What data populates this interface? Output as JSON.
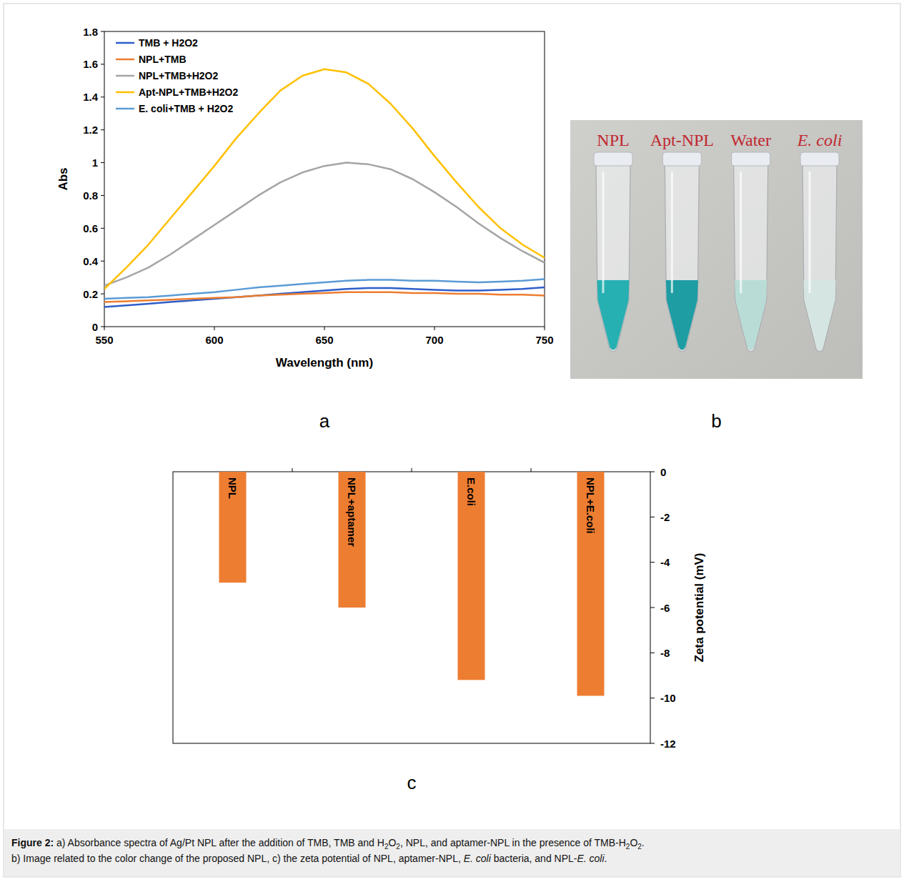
{
  "chart_data": [
    {
      "type": "line",
      "x_label": "Wavelength (nm)",
      "y_label": "Abs",
      "x": [
        550,
        560,
        570,
        580,
        590,
        600,
        610,
        620,
        630,
        640,
        650,
        660,
        670,
        680,
        690,
        700,
        710,
        720,
        730,
        740,
        750
      ],
      "series": [
        {
          "name": "TMB + H2O2",
          "color": "#2e5ec9",
          "values": [
            0.12,
            0.13,
            0.14,
            0.15,
            0.16,
            0.17,
            0.18,
            0.19,
            0.2,
            0.21,
            0.22,
            0.23,
            0.235,
            0.235,
            0.23,
            0.225,
            0.22,
            0.22,
            0.225,
            0.23,
            0.24
          ]
        },
        {
          "name": "NPL+TMB",
          "color": "#ed7d31",
          "values": [
            0.15,
            0.155,
            0.16,
            0.165,
            0.17,
            0.175,
            0.18,
            0.19,
            0.195,
            0.2,
            0.205,
            0.21,
            0.21,
            0.21,
            0.205,
            0.205,
            0.2,
            0.2,
            0.195,
            0.195,
            0.19
          ]
        },
        {
          "name": "NPL+TMB+H2O2",
          "color": "#a5a5a5",
          "values": [
            0.25,
            0.3,
            0.36,
            0.44,
            0.53,
            0.62,
            0.71,
            0.8,
            0.88,
            0.94,
            0.98,
            1.0,
            0.99,
            0.96,
            0.9,
            0.82,
            0.73,
            0.63,
            0.54,
            0.46,
            0.39
          ]
        },
        {
          "name": "Apt-NPL+TMB+H2O2",
          "color": "#ffc000",
          "values": [
            0.23,
            0.36,
            0.5,
            0.66,
            0.82,
            0.98,
            1.15,
            1.3,
            1.44,
            1.53,
            1.57,
            1.55,
            1.48,
            1.36,
            1.21,
            1.04,
            0.88,
            0.73,
            0.6,
            0.5,
            0.42
          ]
        },
        {
          "name": "E. coli+TMB + H2O2",
          "color": "#5b9bd5",
          "values": [
            0.17,
            0.175,
            0.18,
            0.19,
            0.2,
            0.21,
            0.225,
            0.24,
            0.25,
            0.26,
            0.27,
            0.28,
            0.285,
            0.285,
            0.28,
            0.28,
            0.275,
            0.27,
            0.275,
            0.28,
            0.29
          ]
        }
      ],
      "xlim": [
        550,
        750
      ],
      "xticks": [
        550,
        600,
        650,
        700,
        750
      ],
      "ylim": [
        0,
        1.8
      ],
      "yticks": [
        0,
        0.2,
        0.4,
        0.6,
        0.8,
        1,
        1.2,
        1.4,
        1.6,
        1.8
      ],
      "grid": false,
      "legend": "top-left"
    },
    {
      "type": "bar",
      "y_label": "Zeta potential (mV)",
      "categories": [
        "NPL",
        "NPL+aptamer",
        "E.coli",
        "NPL+E.coli"
      ],
      "values": [
        -4.9,
        -6.0,
        -9.2,
        -9.9
      ],
      "color": "#ed7d31",
      "ylim": [
        -12,
        0
      ],
      "yticks": [
        0,
        -2,
        -4,
        -6,
        -8,
        -10,
        -12
      ],
      "grid": false
    }
  ],
  "figure": {
    "panel_labels": [
      "a",
      "b",
      "c"
    ],
    "photo": {
      "labels": [
        {
          "text": "NPL",
          "liquid_color": "#27b0b2"
        },
        {
          "text": "Apt-NPL",
          "liquid_color": "#1e9da3"
        },
        {
          "text": "Water",
          "liquid_color": "#b9dcd7"
        },
        {
          "text": "E. coli",
          "liquid_color": "#d5e5e1",
          "italic": true
        }
      ]
    },
    "caption": [
      [
        {
          "text": "Figure 2:",
          "bold": true
        },
        {
          "text": " a) Absorbance spectra of Ag/Pt NPL after the addition of TMB, TMB and H"
        },
        {
          "text": "2",
          "sub": true
        },
        {
          "text": "O"
        },
        {
          "text": "2",
          "sub": true
        },
        {
          "text": ", NPL, and aptamer-NPL in the presence of TMB-H"
        },
        {
          "text": "2",
          "sub": true
        },
        {
          "text": "O"
        },
        {
          "text": "2",
          "sub": true
        },
        {
          "text": "."
        }
      ],
      [
        {
          "text": "b) Image related to the color change of the proposed NPL, c) the zeta potential of NPL, aptamer-NPL, "
        },
        {
          "text": "E. coli",
          "italic": true
        },
        {
          "text": " bacteria, and NPL-"
        },
        {
          "text": "E. coli",
          "italic": true
        },
        {
          "text": "."
        }
      ]
    ]
  }
}
